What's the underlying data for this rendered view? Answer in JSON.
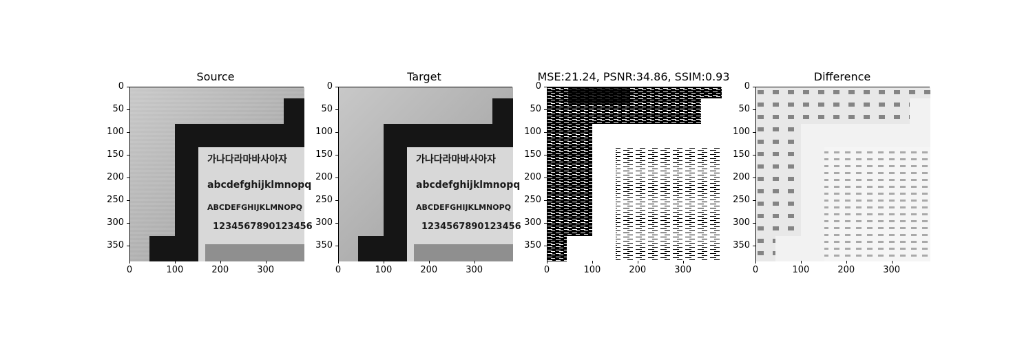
{
  "chart_data": [
    {
      "type": "image",
      "title": "Source",
      "xticks": [
        0,
        100,
        200,
        300
      ],
      "yticks": [
        0,
        50,
        100,
        150,
        200,
        250,
        300,
        350
      ],
      "xlim": [
        0,
        384
      ],
      "ylim": [
        384,
        0
      ],
      "photo_text": [
        "가나다라마바사아자",
        "abcdefghijklmnopq",
        "ABCDEFGHIJKLMNOPQ",
        "1234567890123456"
      ]
    },
    {
      "type": "image",
      "title": "Target",
      "xticks": [
        0,
        100,
        200,
        300
      ],
      "yticks": [
        0,
        50,
        100,
        150,
        200,
        250,
        300,
        350
      ],
      "xlim": [
        0,
        384
      ],
      "ylim": [
        384,
        0
      ],
      "photo_text": [
        "가나다라마바사아자",
        "abcdefghijklmnopq",
        "ABCDEFGHIJKLMNOPQ",
        "1234567890123456"
      ]
    },
    {
      "type": "image",
      "title": "MSE:21.24, PSNR:34.86, SSIM:0.93",
      "xticks": [
        0,
        100,
        200,
        300
      ],
      "yticks": [
        0,
        50,
        100,
        150,
        200,
        250,
        300,
        350
      ],
      "xlim": [
        0,
        384
      ],
      "ylim": [
        384,
        0
      ],
      "metrics": {
        "MSE": 21.24,
        "PSNR": 34.86,
        "SSIM": 0.93
      }
    },
    {
      "type": "image",
      "title": "Difference",
      "xticks": [
        0,
        100,
        200,
        300
      ],
      "yticks": [
        0,
        50,
        100,
        150,
        200,
        250,
        300,
        350
      ],
      "xlim": [
        0,
        384
      ],
      "ylim": [
        384,
        0
      ]
    }
  ]
}
